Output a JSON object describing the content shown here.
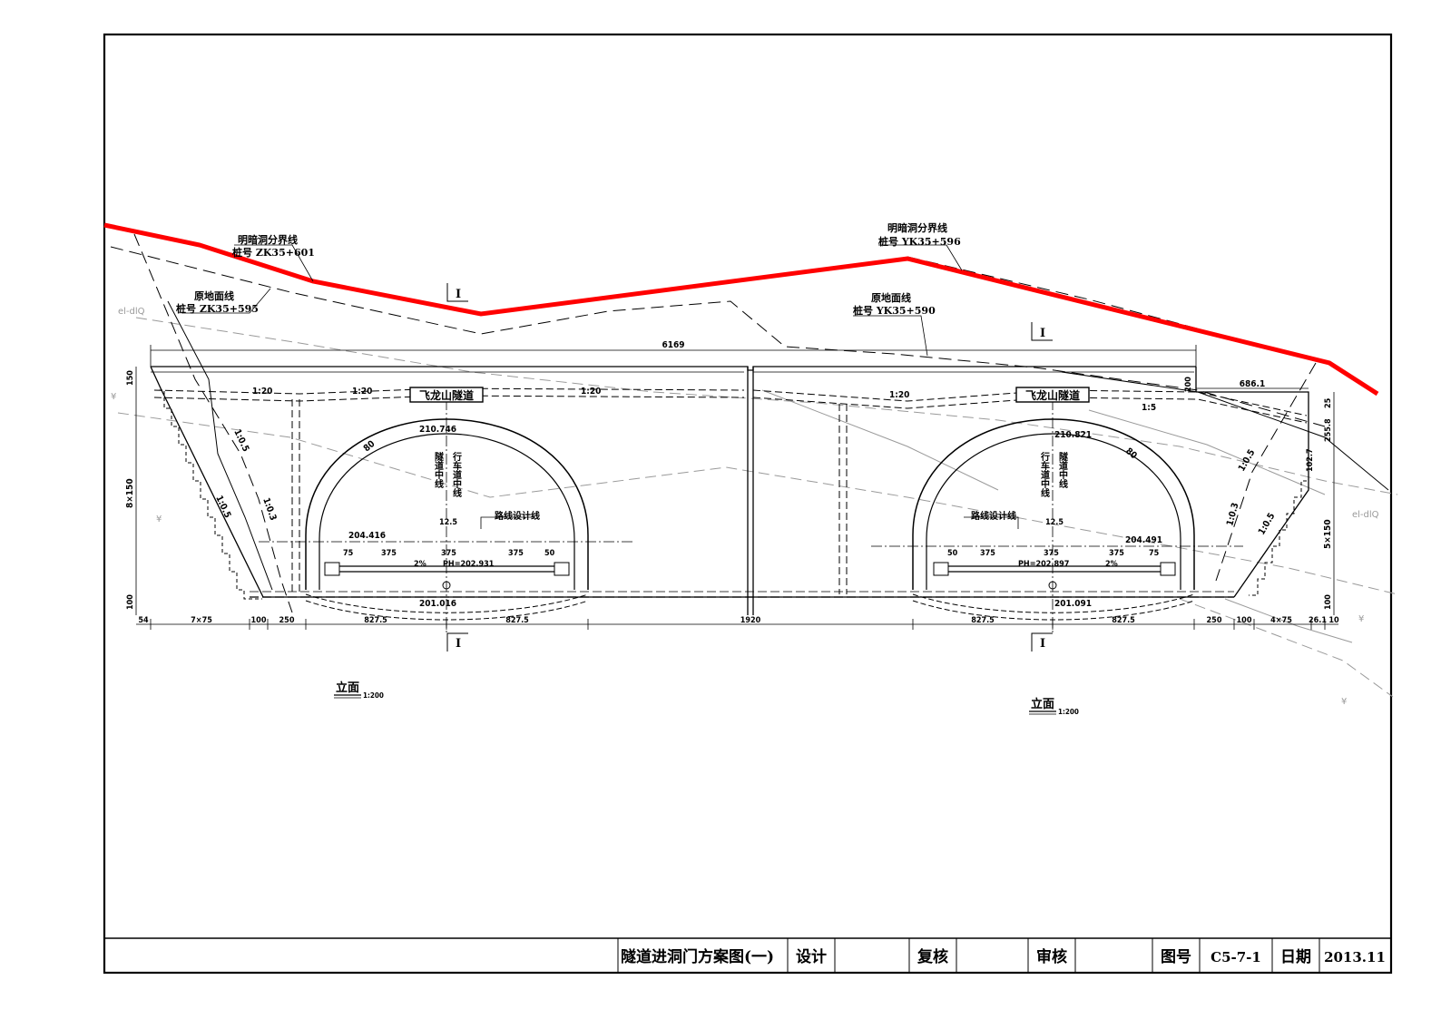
{
  "colors": {
    "design_line": "#ff0000",
    "ink": "#000000",
    "grey_contour": "#9a9a9a"
  },
  "annotations": {
    "left_boundary_title": "明暗洞分界线",
    "left_boundary_station": "桩号 ZK35+601",
    "left_ground_title": "原地面线",
    "left_ground_station": "桩号 ZK35+595",
    "right_boundary_title": "明暗洞分界线",
    "right_boundary_station": "桩号 YK35+596",
    "right_ground_title": "原地面线",
    "right_ground_station": "桩号 YK35+590",
    "section_mark": "I",
    "contour_code": "el-dlQ",
    "tunnel_name": "飞龙山隧道",
    "tunnel_center_left": "隧道中线",
    "lane_center_left": "行车道中线",
    "tunnel_center_right": "隧道中线",
    "lane_center_right": "行车道中线",
    "route_design_line": "路线设计线"
  },
  "dimensions": {
    "total_width": "6169",
    "left_height": "8×150",
    "top_left": "150",
    "bottom_left": "100",
    "bottom_right": "100",
    "right_5x150": "5×150",
    "right_1027": "102.7",
    "right_2558": "255.8",
    "right_25": "25",
    "step_200": "200",
    "ledge_6861": "686.1",
    "slope_120": "1:20",
    "slope_15": "1:5",
    "slope_105": "1:0.5",
    "slope_103": "1:0.3",
    "arc_thickness": "80",
    "crown_left": "210.746",
    "crown_right": "210.821",
    "offset_125": "12.5",
    "spring_left": "204.416",
    "spring_right": "204.491",
    "pave_left": "PH=202.931",
    "pave_right": "PH=202.897",
    "invert_left": "201.016",
    "invert_right": "201.091",
    "crossfall": "2%",
    "w75": "75",
    "w375": "375",
    "w50": "50",
    "bottom_54": "54",
    "bottom_7x75": "7×75",
    "bottom_100": "100",
    "bottom_250": "250",
    "bottom_8275": "827.5",
    "bottom_1920": "1920",
    "bottom_4x75": "4×75",
    "bottom_261": "26.1",
    "bottom_10": "10"
  },
  "captions": {
    "left_title": "立面",
    "left_scale": "1:200",
    "right_title": "立面",
    "right_scale": "1:200"
  },
  "title_block": {
    "drawing_name": "隧道进洞门方案图(一)",
    "design_label": "设计",
    "design_value": "",
    "review_label": "复核",
    "review_value": "",
    "approve_label": "审核",
    "approve_value": "",
    "number_label": "图号",
    "number_value": "C5-7-1",
    "date_label": "日期",
    "date_value": "2013.11"
  }
}
